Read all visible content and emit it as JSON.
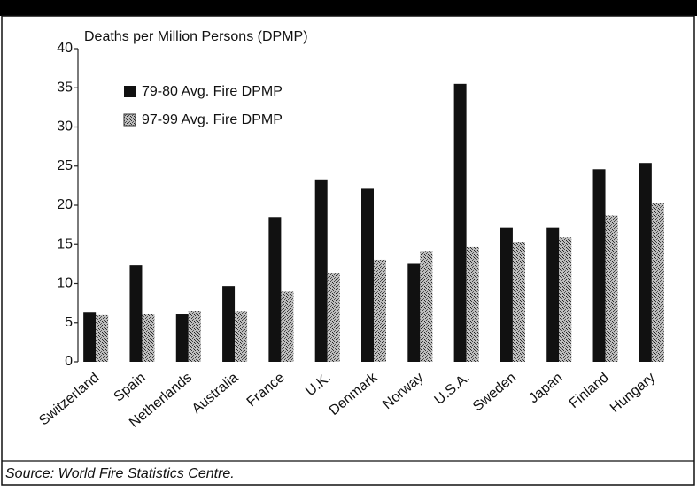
{
  "chart_data": {
    "type": "bar",
    "title": "Deaths per Million Persons (DPMP)",
    "source": "Source: World Fire Statistics Centre.",
    "categories": [
      "Switzerland",
      "Spain",
      "Netherlands",
      "Australia",
      "France",
      "U.K.",
      "Denmark",
      "Norway",
      "U.S.A.",
      "Sweden",
      "Japan",
      "Finland",
      "Hungary"
    ],
    "series": [
      {
        "name": "79-80 Avg. Fire DPMP",
        "color": "#111111",
        "values": [
          6.3,
          12.3,
          6.1,
          9.7,
          18.5,
          23.3,
          22.1,
          12.6,
          35.5,
          17.1,
          17.1,
          24.6,
          25.4
        ]
      },
      {
        "name": "97-99 Avg. Fire DPMP",
        "color": "#9a9a9a",
        "values": [
          6.0,
          6.1,
          6.5,
          6.4,
          9.0,
          11.3,
          13.0,
          14.1,
          14.7,
          15.3,
          15.9,
          18.7,
          20.3
        ]
      }
    ],
    "ylim": [
      0,
      40
    ],
    "yticks": [
      0,
      5,
      10,
      15,
      20,
      25,
      30,
      35,
      40
    ],
    "legend": "upper left",
    "grid": false
  }
}
